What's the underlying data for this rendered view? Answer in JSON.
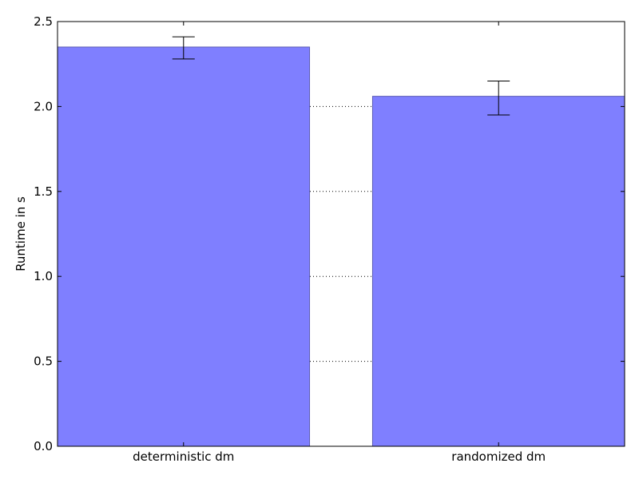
{
  "chart_data": {
    "type": "bar",
    "title": "",
    "xlabel": "",
    "ylabel": "Runtime in s",
    "categories": [
      "deterministic dm",
      "randomized dm"
    ],
    "values": [
      2.35,
      2.06
    ],
    "error_low": [
      2.28,
      1.95
    ],
    "error_high": [
      2.41,
      2.15
    ],
    "ylim": [
      0,
      2.5
    ],
    "yticks": [
      "0.0",
      "0.5",
      "1.0",
      "1.5",
      "2.0",
      "2.5"
    ],
    "grid": "horizontal dotted",
    "bar_color": "#7f7fff",
    "bar_edge_color": "#5a5ab4"
  }
}
